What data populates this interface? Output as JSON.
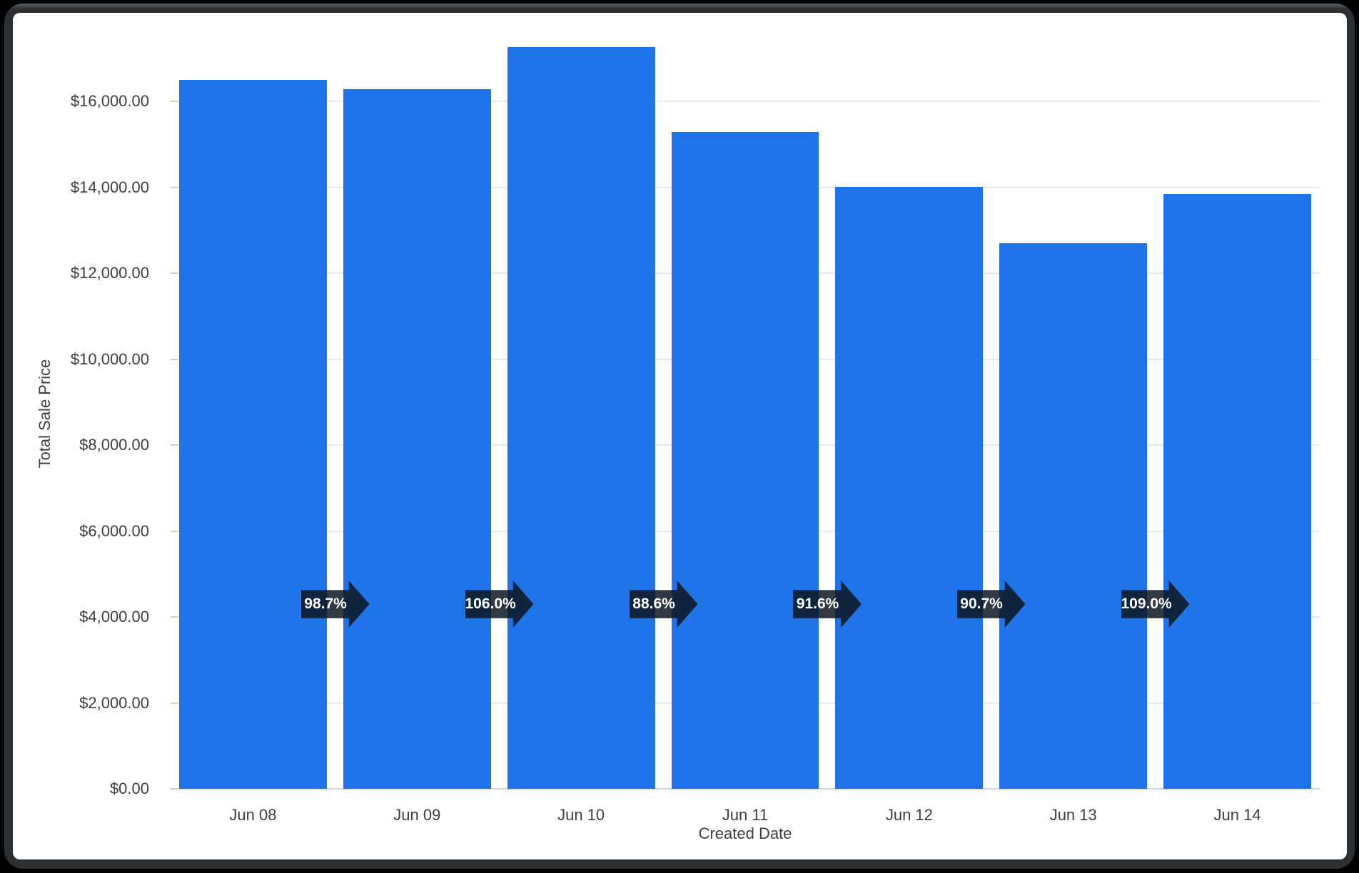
{
  "window": {
    "background_color": "#000000",
    "bezel_color": "#2c3033",
    "card_color": "#ffffff"
  },
  "chart_data": {
    "type": "bar",
    "title": "",
    "xlabel": "Created Date",
    "ylabel": "Total Sale Price",
    "categories": [
      "Jun 08",
      "Jun 09",
      "Jun 10",
      "Jun 11",
      "Jun 12",
      "Jun 13",
      "Jun 14"
    ],
    "values": [
      16500,
      16290,
      17260,
      15290,
      14010,
      12710,
      13850
    ],
    "ylim": [
      0,
      17500
    ],
    "yticks": [
      {
        "value": 0,
        "label": "$0.00"
      },
      {
        "value": 2000,
        "label": "$2,000.00"
      },
      {
        "value": 4000,
        "label": "$4,000.00"
      },
      {
        "value": 6000,
        "label": "$6,000.00"
      },
      {
        "value": 8000,
        "label": "$8,000.00"
      },
      {
        "value": 10000,
        "label": "$10,000.00"
      },
      {
        "value": 12000,
        "label": "$12,000.00"
      },
      {
        "value": 14000,
        "label": "$14,000.00"
      },
      {
        "value": 16000,
        "label": "$16,000.00"
      }
    ],
    "grid": true,
    "legend_position": "none",
    "bar_color": "#1e74e8",
    "annotations": [
      {
        "between_index": 1,
        "label": "98.7%"
      },
      {
        "between_index": 2,
        "label": "106.0%"
      },
      {
        "between_index": 3,
        "label": "88.6%"
      },
      {
        "between_index": 4,
        "label": "91.6%"
      },
      {
        "between_index": 5,
        "label": "90.7%"
      },
      {
        "between_index": 6,
        "label": "109.0%"
      }
    ],
    "annotation_style": {
      "shape": "right-arrow",
      "background": "rgba(13,22,33,0.85)",
      "text_color": "#ffffff"
    }
  }
}
